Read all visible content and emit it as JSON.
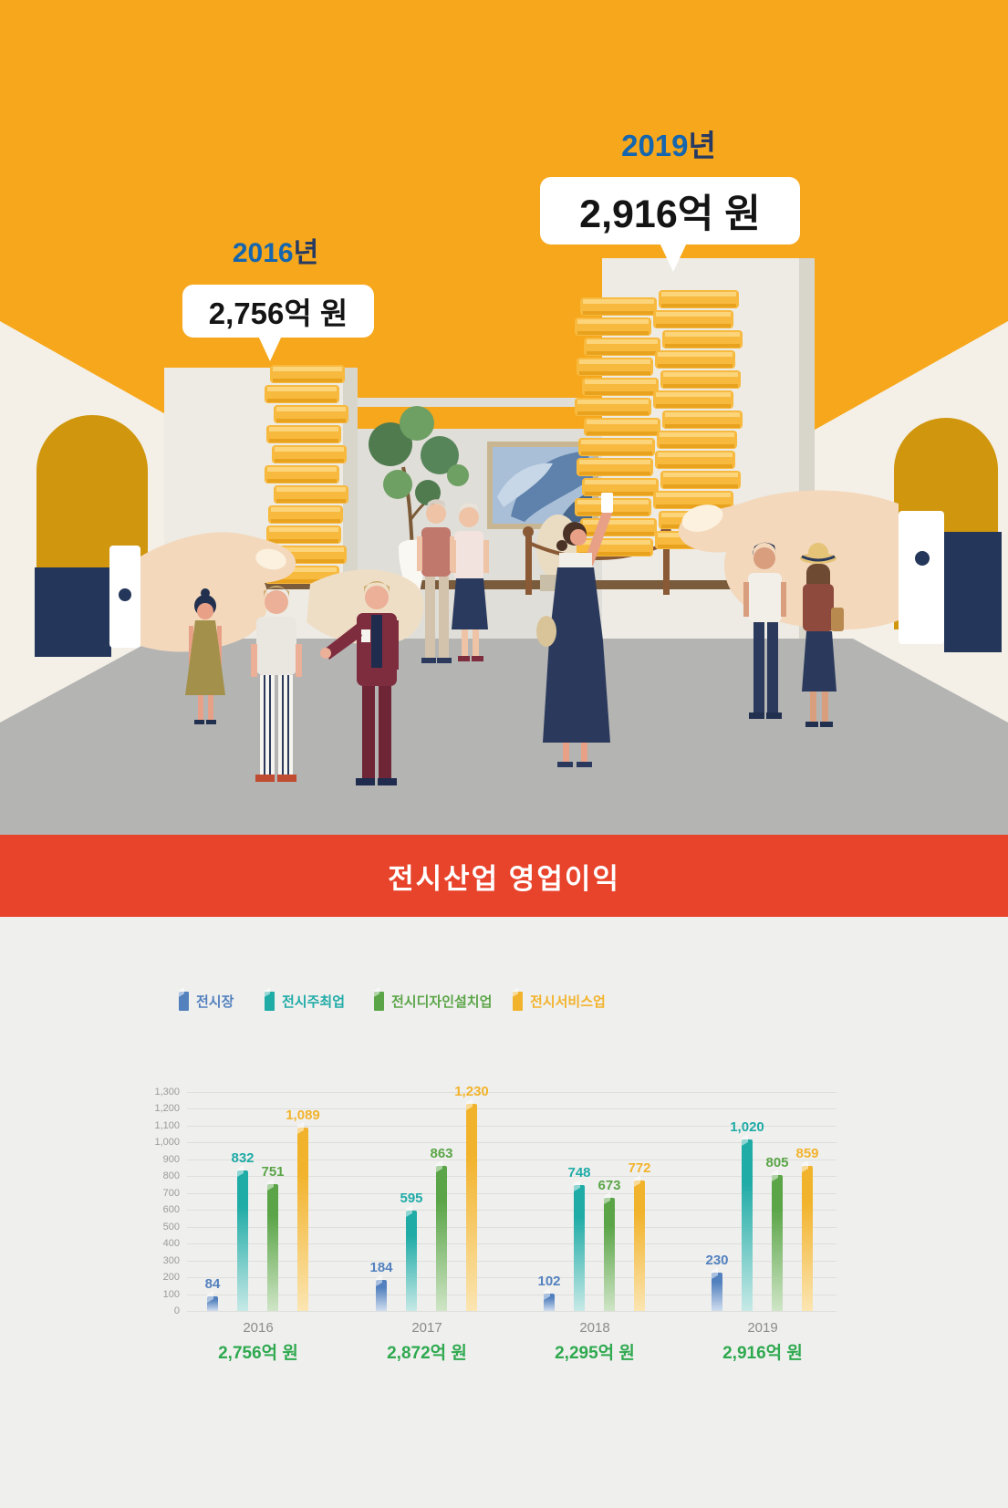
{
  "illustration": {
    "label_2016": {
      "year": "2016",
      "suffix": "년",
      "bubble": "2,756억 원"
    },
    "label_2019": {
      "year": "2019",
      "suffix": "년",
      "bubble": "2,916억 원"
    },
    "year_color": "#1566AE",
    "year_suffix_color": "#263A63",
    "background_color": "#F7A71B"
  },
  "banner": {
    "title": "전시산업 영업이익",
    "bg_color": "#E8432B"
  },
  "chart_data": {
    "type": "bar",
    "title": "전시산업 영업이익",
    "categories": [
      "2016",
      "2017",
      "2018",
      "2019"
    ],
    "series": [
      {
        "name": "전시장",
        "color": "#5381BE",
        "color_light": "#CFDDEF",
        "values": [
          84,
          184,
          102,
          230
        ]
      },
      {
        "name": "전시주최업",
        "color": "#1FABA6",
        "color_light": "#C6E9E6",
        "values": [
          832,
          595,
          748,
          1020
        ]
      },
      {
        "name": "전시디자인설치업",
        "color": "#5BA548",
        "color_light": "#CFE5C6",
        "values": [
          751,
          863,
          673,
          805
        ]
      },
      {
        "name": "전시서비스업",
        "color": "#F2B32C",
        "color_light": "#FBE5B2",
        "values": [
          1089,
          1230,
          772,
          859
        ]
      }
    ],
    "totals": [
      "2,756억 원",
      "2,872억 원",
      "2,295억 원",
      "2,916억 원"
    ],
    "ylim": [
      0,
      1300
    ],
    "ytick_step": 100,
    "grid": true,
    "legend_position": "top",
    "category_color": "#8B8B8B",
    "total_color": "#2FA94F"
  }
}
